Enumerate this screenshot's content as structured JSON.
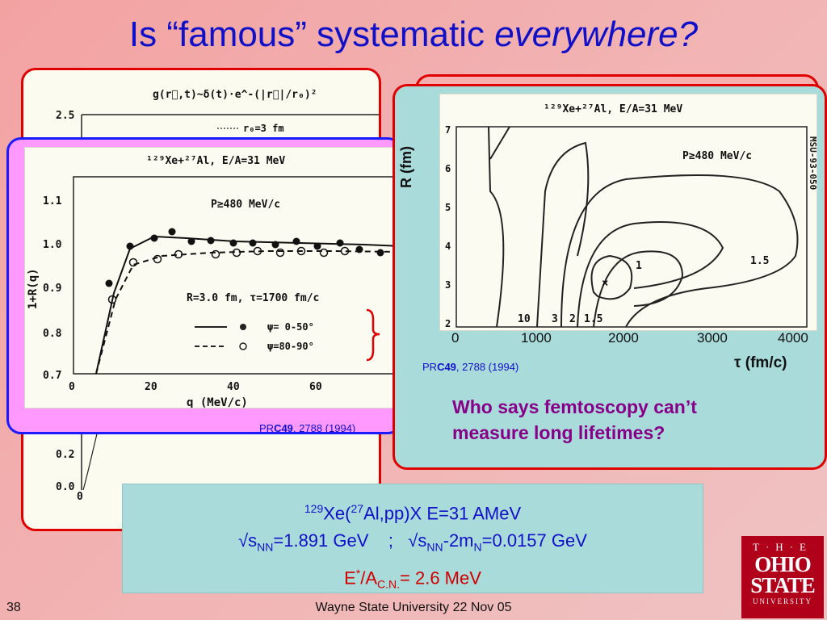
{
  "title": {
    "text_plain": "Is “famous” systematic ",
    "text_italic": "everywhere?"
  },
  "back_plot": {
    "formula": "g(r⃗,t)~δ(t)·e^-(|r⃗|/r₀)²",
    "y_ticks": [
      "2.5",
      "0.2",
      "0.0"
    ],
    "x_tick": "0",
    "legend": "r₀=3 fm"
  },
  "pink_plot": {
    "reaction": "¹²⁹Xe+²⁷Al, E/A=31 MeV",
    "cut": "P≥480 MeV/c",
    "params": "R=3.0 fm, τ=1700 fm/c",
    "ylabel": "1+R(q)",
    "xlabel": "q (MeV/c)",
    "x_ticks": [
      "0",
      "20",
      "40",
      "60"
    ],
    "y_ticks": [
      "1.1",
      "1.0",
      "0.9",
      "0.8",
      "0.7"
    ],
    "legend_solid": "ψ= 0-50°",
    "legend_dashed": "ψ=80-90°",
    "cite_prefix": "PR",
    "cite_bold": "C49",
    "cite_rest": ", 2788 (1994)"
  },
  "contour_plot": {
    "reaction": "¹²⁹Xe+²⁷Al, E/A=31 MeV",
    "cut": "P≥480 MeV/c",
    "ylabel": "R (fm)",
    "xlabel": "τ (fm/c)",
    "y_ticks": [
      "7",
      "6",
      "5",
      "4",
      "3",
      "2"
    ],
    "x_ticks": [
      "0",
      "1000",
      "2000",
      "3000",
      "4000"
    ],
    "side_label": "MSU-93-050",
    "contour_labels": [
      "1",
      "1.5",
      "10",
      "3",
      "2",
      "1.5"
    ],
    "cite_prefix": "PR",
    "cite_bold": "C49",
    "cite_rest": ", 2788 (1994)"
  },
  "question": {
    "line1": "Who says femtoscopy can’t",
    "line2": "measure long lifetimes?"
  },
  "bottom": {
    "l1_sup1": "129",
    "l1_a": "Xe(",
    "l1_sup2": "27",
    "l1_b": "Al,pp)X  E=31 AMeV",
    "l2_a": "√s",
    "l2_sub1": "NN",
    "l2_b": "=1.891 GeV    ;   √s",
    "l2_sub2": "NN",
    "l2_c": "-2m",
    "l2_sub3": "N",
    "l2_d": "=0.0157 GeV",
    "l3_a": "E",
    "l3_sup": "*",
    "l3_b": "/A",
    "l3_sub": "C.N.",
    "l3_c": "= 2.6 MeV"
  },
  "footer": {
    "slide_number": "38",
    "text": "Wayne State University 22 Nov 05"
  },
  "logo": {
    "line1": "T·H·E",
    "line2": "OHIO",
    "line3": "STATE",
    "line4": "UNIVERSITY"
  },
  "colors": {
    "title_blue": "#1010c8",
    "panel_red": "#e00000",
    "panel_blue": "#1a1aff",
    "question_purple": "#880088",
    "logo_red": "#b0001a"
  }
}
